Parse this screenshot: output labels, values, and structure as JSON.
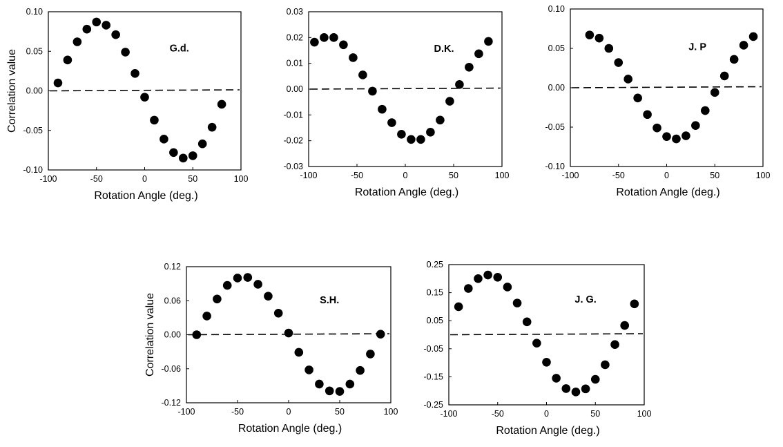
{
  "chart_data": [
    {
      "type": "scatter",
      "panel_label": "G.d.",
      "xlabel": "Rotation  Angle  (deg.)",
      "ylabel": "Correlation    value",
      "xlim": [
        -100,
        100
      ],
      "ylim": [
        -0.1,
        0.1
      ],
      "xticks": [
        -100,
        -50,
        0,
        50,
        100
      ],
      "yticks": [
        -0.1,
        -0.05,
        0.0,
        0.05,
        0.1
      ],
      "xtick_labels": [
        "-100",
        "-50",
        "0",
        "50",
        "100"
      ],
      "ytick_labels": [
        "-0.10",
        "-0.05",
        "0.00",
        "0.05",
        "0.10"
      ],
      "reference_line": {
        "y": 0,
        "style": "dashed"
      },
      "x": [
        -90,
        -80,
        -70,
        -60,
        -50,
        -40,
        -30,
        -20,
        -10,
        0,
        10,
        20,
        30,
        40,
        50,
        60,
        70,
        80
      ],
      "y": [
        0.01,
        0.039,
        0.062,
        0.078,
        0.087,
        0.083,
        0.071,
        0.049,
        0.022,
        -0.008,
        -0.037,
        -0.061,
        -0.078,
        -0.085,
        -0.082,
        -0.067,
        -0.046,
        -0.017
      ]
    },
    {
      "type": "scatter",
      "panel_label": "D.K.",
      "xlabel": "Rotation  Angle  (deg.)",
      "ylabel": "",
      "xlim": [
        -100,
        100
      ],
      "ylim": [
        -0.03,
        0.03
      ],
      "xticks": [
        -100,
        -50,
        0,
        50,
        100
      ],
      "yticks": [
        -0.03,
        -0.02,
        -0.01,
        0.0,
        0.01,
        0.02,
        0.03
      ],
      "xtick_labels": [
        "-100",
        "-50",
        "0",
        "50",
        "100"
      ],
      "ytick_labels": [
        "-0.03",
        "-0.02",
        "-0.01",
        "0.00",
        "0.01",
        "0.02",
        "0.03"
      ],
      "reference_line": {
        "y": 0,
        "style": "dashed"
      },
      "x": [
        -94,
        -84,
        -74,
        -64,
        -54,
        -44,
        -34,
        -24,
        -14,
        -4,
        6,
        16,
        26,
        36,
        46,
        56,
        66,
        76,
        86
      ],
      "y": [
        0.0182,
        0.02,
        0.02,
        0.0172,
        0.0122,
        0.0055,
        -0.0008,
        -0.0078,
        -0.013,
        -0.0175,
        -0.0195,
        -0.0195,
        -0.0167,
        -0.012,
        -0.0047,
        0.0018,
        0.0085,
        0.0137,
        0.0185
      ]
    },
    {
      "type": "scatter",
      "panel_label": "J. P",
      "xlabel": "Rotation  Angle  (deg.)",
      "ylabel": "",
      "xlim": [
        -100,
        100
      ],
      "ylim": [
        -0.1,
        0.1
      ],
      "xticks": [
        -100,
        -50,
        0,
        50,
        100
      ],
      "yticks": [
        -0.1,
        -0.05,
        0.0,
        0.05,
        0.1
      ],
      "xtick_labels": [
        "-100",
        "-50",
        "0",
        "50",
        "100"
      ],
      "ytick_labels": [
        "-0.10",
        "-0.05",
        "0.00",
        "0.05",
        "0.10"
      ],
      "reference_line": {
        "y": 0,
        "style": "dashed"
      },
      "x": [
        -80,
        -70,
        -60,
        -50,
        -40,
        -30,
        -20,
        -10,
        0,
        10,
        20,
        30,
        40,
        50,
        60,
        70,
        80,
        90
      ],
      "y": [
        0.067,
        0.063,
        0.05,
        0.032,
        0.011,
        -0.013,
        -0.034,
        -0.051,
        -0.062,
        -0.065,
        -0.061,
        -0.048,
        -0.029,
        -0.006,
        0.015,
        0.036,
        0.054,
        0.065
      ]
    },
    {
      "type": "scatter",
      "panel_label": "S.H.",
      "xlabel": "Rotation  Angle  (deg.)",
      "ylabel": "Correlation    value",
      "xlim": [
        -100,
        100
      ],
      "ylim": [
        -0.12,
        0.12
      ],
      "xticks": [
        -100,
        -50,
        0,
        50,
        100
      ],
      "yticks": [
        -0.12,
        -0.06,
        0.0,
        0.06,
        0.12
      ],
      "xtick_labels": [
        "-100",
        "-50",
        "0",
        "50",
        "100"
      ],
      "ytick_labels": [
        "-0.12",
        "-0.06",
        "0.00",
        "0.06",
        "0.12"
      ],
      "reference_line": {
        "y": 0,
        "style": "dashed"
      },
      "x": [
        -90,
        -80,
        -70,
        -60,
        -50,
        -40,
        -30,
        -20,
        -10,
        0,
        10,
        20,
        30,
        40,
        50,
        60,
        70,
        80,
        90
      ],
      "y": [
        0.0,
        0.033,
        0.063,
        0.087,
        0.1,
        0.101,
        0.089,
        0.068,
        0.038,
        0.003,
        -0.031,
        -0.062,
        -0.087,
        -0.099,
        -0.1,
        -0.087,
        -0.063,
        -0.034,
        0.001
      ]
    },
    {
      "type": "scatter",
      "panel_label": "J. G.",
      "xlabel": "Rotation  Angle  (deg.)",
      "ylabel": "",
      "xlim": [
        -100,
        100
      ],
      "ylim": [
        -0.25,
        0.25
      ],
      "xticks": [
        -100,
        -50,
        0,
        50,
        100
      ],
      "yticks": [
        -0.25,
        -0.15,
        -0.05,
        0.05,
        0.15,
        0.25
      ],
      "xtick_labels": [
        "-100",
        "-50",
        "0",
        "50",
        "100"
      ],
      "ytick_labels": [
        "-0.25",
        "-0.15",
        "-0.05",
        "0.05",
        "0.15",
        "0.25"
      ],
      "reference_line": {
        "y": 0,
        "style": "dashed"
      },
      "x": [
        -90,
        -80,
        -70,
        -60,
        -50,
        -40,
        -30,
        -20,
        -10,
        0,
        10,
        20,
        30,
        40,
        50,
        60,
        70,
        80,
        90
      ],
      "y": [
        0.1,
        0.165,
        0.2,
        0.213,
        0.205,
        0.17,
        0.113,
        0.046,
        -0.03,
        -0.098,
        -0.155,
        -0.192,
        -0.204,
        -0.193,
        -0.159,
        -0.107,
        -0.035,
        0.033,
        0.11
      ]
    }
  ]
}
